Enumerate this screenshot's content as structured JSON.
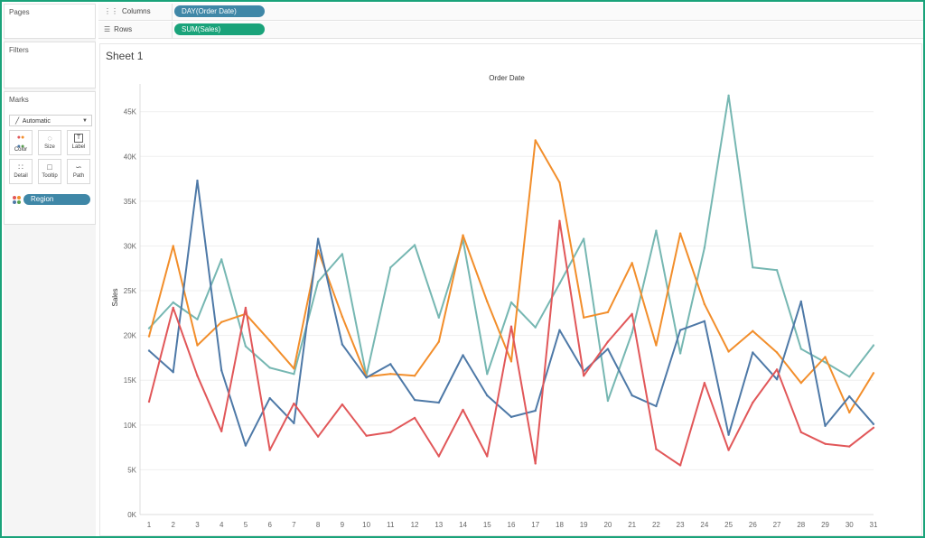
{
  "left_panel": {
    "pages_title": "Pages",
    "filters_title": "Filters",
    "marks_title": "Marks",
    "mark_type": "Automatic",
    "buttons": [
      {
        "label": "Color",
        "icon": "color-icon"
      },
      {
        "label": "Size",
        "icon": "size-icon"
      },
      {
        "label": "Label",
        "icon": "label-icon"
      },
      {
        "label": "Detail",
        "icon": "detail-icon"
      },
      {
        "label": "Tooltip",
        "icon": "tooltip-icon"
      },
      {
        "label": "Path",
        "icon": "path-icon"
      }
    ],
    "color_field": "Region"
  },
  "shelves": {
    "columns_label": "Columns",
    "columns_pill": "DAY(Order Date)",
    "rows_label": "Rows",
    "rows_pill": "SUM(Sales)"
  },
  "sheet": {
    "title": "Sheet 1"
  },
  "chart_data": {
    "type": "line",
    "title": "Order Date",
    "xlabel": "",
    "ylabel": "Sales",
    "categories": [
      "1",
      "2",
      "3",
      "4",
      "5",
      "6",
      "7",
      "8",
      "9",
      "10",
      "11",
      "12",
      "13",
      "14",
      "15",
      "16",
      "17",
      "18",
      "19",
      "20",
      "21",
      "22",
      "23",
      "24",
      "25",
      "26",
      "27",
      "28",
      "29",
      "30",
      "31"
    ],
    "y_ticks": [
      "0K",
      "5K",
      "10K",
      "15K",
      "20K",
      "25K",
      "30K",
      "35K",
      "40K",
      "45K"
    ],
    "ylim": [
      0,
      48500
    ],
    "grid": true,
    "series": [
      {
        "color": "#76b7b2",
        "values": [
          20800,
          23700,
          21800,
          28500,
          18800,
          16400,
          15700,
          26000,
          29100,
          15500,
          27600,
          30100,
          22000,
          30700,
          15700,
          23700,
          20900,
          25800,
          30800,
          12700,
          20300,
          31700,
          18000,
          29800,
          46800,
          27600,
          27300,
          18500,
          17000,
          15400,
          18900
        ]
      },
      {
        "color": "#f28e2b",
        "values": [
          19900,
          30000,
          18900,
          21500,
          22400,
          19400,
          16300,
          29500,
          22100,
          15400,
          15700,
          15500,
          19300,
          31200,
          23800,
          17100,
          41800,
          37100,
          22000,
          22600,
          28100,
          18900,
          31400,
          23500,
          18200,
          20500,
          18100,
          14700,
          17600,
          11400,
          15800
        ]
      },
      {
        "color": "#4e79a7",
        "values": [
          18300,
          15900,
          37300,
          16100,
          7700,
          13000,
          10200,
          30800,
          19000,
          15300,
          16800,
          12800,
          12500,
          17800,
          13300,
          10900,
          11600,
          20600,
          16000,
          18500,
          13300,
          12100,
          20600,
          21600,
          8900,
          18100,
          15100,
          23800,
          9900,
          13200,
          10100
        ]
      },
      {
        "color": "#e15759",
        "values": [
          12600,
          23100,
          15500,
          9300,
          23100,
          7200,
          12400,
          8700,
          12300,
          8800,
          9200,
          10800,
          6500,
          11700,
          6500,
          21000,
          5700,
          32800,
          15500,
          19300,
          22400,
          7300,
          5500,
          14700,
          7200,
          12500,
          16200,
          9200,
          7900,
          7600,
          9700
        ]
      }
    ]
  }
}
